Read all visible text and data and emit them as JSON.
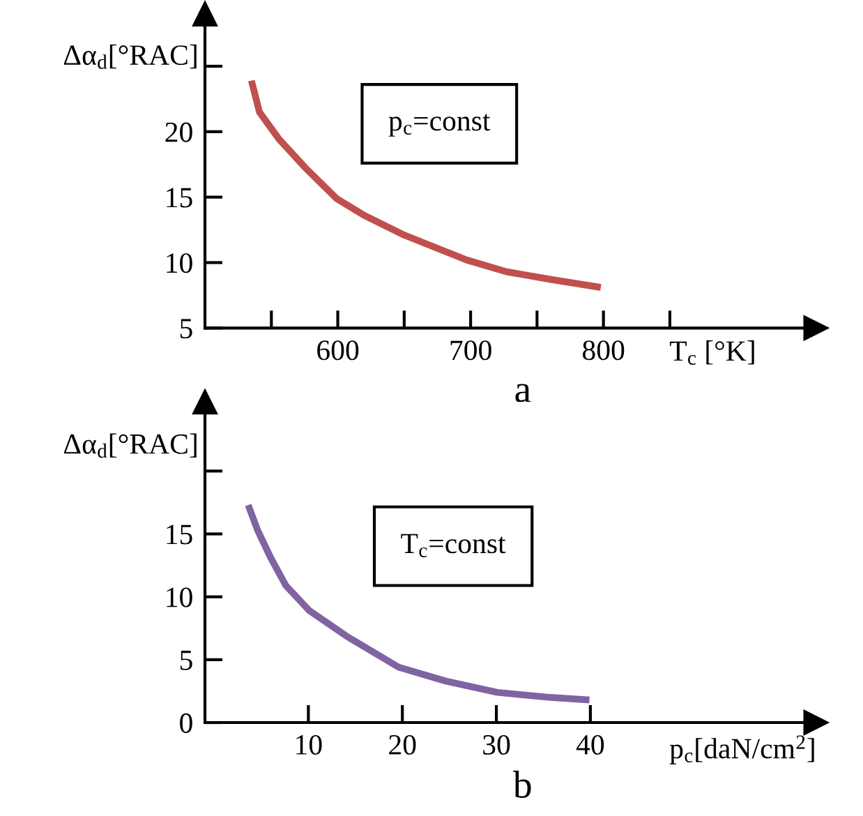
{
  "chart_data": [
    {
      "type": "line",
      "xlabel": "T$_{c}$ [°K]",
      "ylabel": "Δα$_{d}$[°RAC]",
      "xlim": [
        500,
        960
      ],
      "ylim": [
        5,
        29
      ],
      "xticks": [
        {
          "value": 550,
          "label": null
        },
        600,
        {
          "value": 650,
          "label": null
        },
        700,
        {
          "value": 750,
          "label": null
        },
        800,
        {
          "value": 850,
          "label": null
        }
      ],
      "yticks": [
        5,
        10,
        15,
        20,
        {
          "value": 25,
          "label": null
        }
      ],
      "series": [
        {
          "color": "#c0504d",
          "x": [
            535,
            541,
            556,
            576,
            599,
            620,
            650,
            697,
            727,
            761,
            798
          ],
          "values": [
            23.9,
            21.5,
            19.4,
            17.2,
            14.9,
            13.6,
            12.1,
            10.2,
            9.3,
            8.7,
            8.1
          ]
        }
      ],
      "annotations": [
        "p$_{c}$=const",
        "a"
      ]
    },
    {
      "type": "line",
      "xlabel": "p$_{c}$[daN/cm$^{2}$]",
      "ylabel": "Δα$_{d}$[°RAC]",
      "xlim": [
        -1,
        64
      ],
      "ylim": [
        0,
        25.5
      ],
      "xticks": [
        10,
        20,
        30,
        40
      ],
      "yticks": [
        0,
        5,
        10,
        15,
        {
          "value": 20,
          "label": null
        }
      ],
      "series": [
        {
          "color": "#8064a2",
          "x": [
            3.6,
            4.6,
            6.0,
            7.6,
            10.1,
            14.0,
            19.6,
            24.6,
            30.1,
            35.7,
            39.9
          ],
          "values": [
            17.3,
            15.3,
            13.1,
            10.9,
            8.9,
            6.9,
            4.4,
            3.3,
            2.4,
            2.0,
            1.8
          ]
        }
      ],
      "annotations": [
        "T$_{c}$=const",
        "b"
      ]
    }
  ]
}
